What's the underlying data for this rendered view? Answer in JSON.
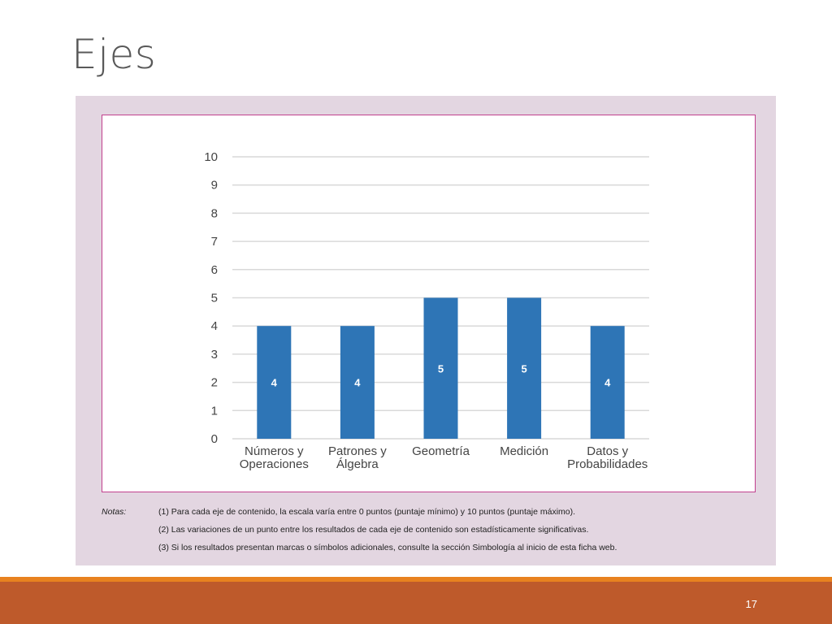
{
  "slide": {
    "title": "Ejes",
    "page_number": "17"
  },
  "colors": {
    "bar": "#2e75b6",
    "panel_background": "#e3d6e1",
    "frame_border": "#c2408e",
    "footer_bar": "#be5a2b",
    "footer_stripe": "#e8821f"
  },
  "chart_data": {
    "type": "bar",
    "categories": [
      [
        "Números y",
        "Operaciones"
      ],
      [
        "Patrones y",
        "Álgebra"
      ],
      [
        "Geometría"
      ],
      [
        "Medición"
      ],
      [
        "Datos y",
        "Probabilidades"
      ]
    ],
    "values": [
      4,
      4,
      5,
      5,
      4
    ],
    "data_labels": [
      "4",
      "4",
      "5",
      "5",
      "4"
    ],
    "ylim": [
      0,
      10
    ],
    "yticks": [
      "0",
      "1",
      "2",
      "3",
      "4",
      "5",
      "6",
      "7",
      "8",
      "9",
      "10"
    ],
    "grid": true,
    "legend": "none",
    "title": "",
    "xlabel": "",
    "ylabel": ""
  },
  "notes": {
    "label": "Notas:",
    "lines": [
      "(1) Para cada eje de contenido, la escala varía entre 0 puntos (puntaje mínimo) y 10 puntos (puntaje máximo).",
      "(2) Las variaciones de un punto entre los resultados de cada eje de contenido son estadísticamente significativas.",
      "(3) Si los resultados presentan marcas o símbolos adicionales, consulte la sección Simbología al inicio de esta ficha web."
    ]
  }
}
